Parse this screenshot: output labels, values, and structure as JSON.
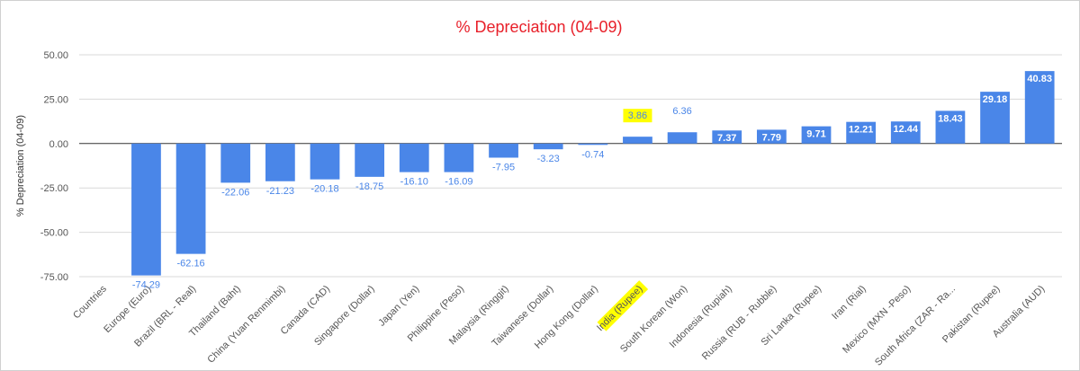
{
  "chart_data": {
    "type": "bar",
    "title": "% Depreciation (04-09)",
    "ylabel": "% Depreciation (04-09)",
    "xlabel": "",
    "ylim": [
      -75,
      50
    ],
    "yticks": [
      "50.00",
      "25.00",
      "0.00",
      "-25.00",
      "-50.00",
      "-75.00"
    ],
    "grid": true,
    "bar_color": "#4a86e8",
    "highlight_color": "#ffff00",
    "title_color": "#e8202a",
    "categories": [
      "Countries",
      "Europe (Euro)",
      "Brazil (BRL - Real)",
      "Thailand (Baht)",
      "China (Yuan Renmimbi)",
      "Canada (CAD)",
      "Singapore (Dollar)",
      "Japan (Yen)",
      "Philippine (Peso)",
      "Malaysia (Ringgit)",
      "Taiwanese (Dollar)",
      "Hong Kong (Dollar)",
      "India (Rupee)",
      "South Korean (Won)",
      "Indonesia (Rupiah)",
      "Russia (RUB - Rubble)",
      "Sri Lanka (Rupee)",
      "Iran (Rial)",
      "Mexico (MXN -Peso)",
      "South Africa (ZAR - Ra...",
      "Pakistan (Rupee)",
      "Australia (AUD)"
    ],
    "values": [
      null,
      -74.29,
      -62.16,
      -22.06,
      -21.23,
      -20.18,
      -18.75,
      -16.1,
      -16.09,
      -7.95,
      -3.23,
      -0.74,
      3.86,
      6.36,
      7.37,
      7.79,
      9.71,
      12.21,
      12.44,
      18.43,
      29.18,
      40.83
    ],
    "data_labels": [
      "",
      "-74.29",
      "-62.16",
      "-22.06",
      "-21.23",
      "-20.18",
      "-18.75",
      "-16.10",
      "-16.09",
      "-7.95",
      "-3.23",
      "-0.74",
      "3.86",
      "6.36",
      "7.37",
      "7.79",
      "9.71",
      "12.21",
      "12.44",
      "18.43",
      "29.18",
      "40.83"
    ],
    "highlighted_category": "India (Rupee)"
  }
}
